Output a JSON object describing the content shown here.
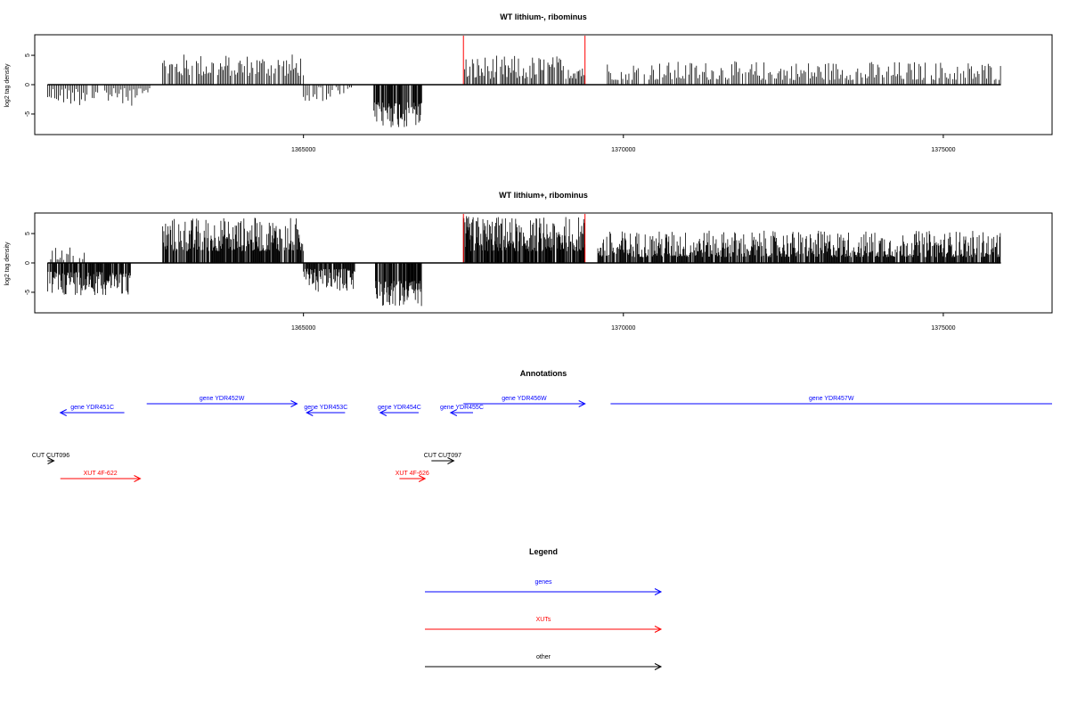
{
  "chart_data": [
    {
      "type": "bar",
      "title": "WT lithium-, ribominus",
      "ylabel": "log2 tag density",
      "xlabel": "",
      "xlim": [
        1360800,
        1376700
      ],
      "ylim": [
        -8.5,
        8.5
      ],
      "x_ticks": [
        1365000,
        1370000,
        1375000
      ],
      "y_ticks": [
        -5,
        0,
        5
      ],
      "grid": false,
      "segments": [
        {
          "start": 1361000,
          "end": 1362600,
          "sign": -1,
          "min": 0.6,
          "max": 3.6,
          "step": 28
        },
        {
          "start": 1362800,
          "end": 1365000,
          "sign": 1,
          "min": 1.5,
          "max": 5.3,
          "step": 22
        },
        {
          "start": 1365000,
          "end": 1365800,
          "sign": -1,
          "min": 0.4,
          "max": 2.8,
          "step": 30
        },
        {
          "start": 1366100,
          "end": 1366850,
          "sign": -1,
          "min": 3.0,
          "max": 7.5,
          "step": 9
        },
        {
          "start": 1367500,
          "end": 1369400,
          "sign": 1,
          "min": 1.0,
          "max": 5.0,
          "step": 20
        },
        {
          "start": 1369750,
          "end": 1375900,
          "sign": 1,
          "min": 0.8,
          "max": 4.0,
          "step": 24
        }
      ],
      "highlights": [
        {
          "x": 1367500,
          "y": 8.5
        },
        {
          "x": 1369400,
          "y": 8.5
        }
      ],
      "highlight_color": "#ff0000"
    },
    {
      "type": "bar",
      "title": "WT lithium+, ribominus",
      "ylabel": "log2 tag density",
      "xlabel": "",
      "xlim": [
        1360800,
        1376700
      ],
      "ylim": [
        -8.5,
        8.5
      ],
      "x_ticks": [
        1365000,
        1370000,
        1375000
      ],
      "y_ticks": [
        -5,
        0,
        5
      ],
      "grid": false,
      "segments": [
        {
          "start": 1361000,
          "end": 1362300,
          "sign": -1,
          "min": 1.5,
          "max": 5.5,
          "step": 9
        },
        {
          "start": 1361000,
          "end": 1361600,
          "sign": 1,
          "min": 0.5,
          "max": 3.0,
          "step": 25
        },
        {
          "start": 1362800,
          "end": 1365000,
          "sign": 1,
          "min": 2.0,
          "max": 7.8,
          "step": 9
        },
        {
          "start": 1365000,
          "end": 1365800,
          "sign": -1,
          "min": 1.0,
          "max": 5.0,
          "step": 10
        },
        {
          "start": 1366100,
          "end": 1366850,
          "sign": -1,
          "min": 3.0,
          "max": 7.5,
          "step": 8
        },
        {
          "start": 1367500,
          "end": 1369400,
          "sign": 1,
          "min": 2.0,
          "max": 8.0,
          "step": 8
        },
        {
          "start": 1369600,
          "end": 1375900,
          "sign": 1,
          "min": 1.0,
          "max": 5.5,
          "step": 10
        }
      ],
      "highlights": [
        {
          "x": 1367500,
          "y": 8.5
        },
        {
          "x": 1369400,
          "y": 8.5
        }
      ],
      "highlight_color": "#ff0000"
    }
  ],
  "annotations": {
    "title": "Annotations",
    "rows": [
      {
        "label": "gene YDR451C",
        "x1": 1361200,
        "x2": 1362200,
        "dir": "left",
        "row": 2,
        "color": "#0000ff"
      },
      {
        "label": "gene YDR452W",
        "x1": 1362550,
        "x2": 1364900,
        "dir": "right",
        "row": 1,
        "color": "#0000ff"
      },
      {
        "label": "gene YDR453C",
        "x1": 1365050,
        "x2": 1365650,
        "dir": "left",
        "row": 2,
        "color": "#0000ff"
      },
      {
        "label": "gene YDR454C",
        "x1": 1366200,
        "x2": 1366800,
        "dir": "left",
        "row": 2,
        "color": "#0000ff"
      },
      {
        "label": "gene YDR455C",
        "x1": 1367300,
        "x2": 1367650,
        "dir": "left",
        "row": 2,
        "color": "#0000ff"
      },
      {
        "label": "gene YDR456W",
        "x1": 1367500,
        "x2": 1369400,
        "dir": "right",
        "row": 1,
        "color": "#0000ff"
      },
      {
        "label": "gene YDR457W",
        "x1": 1369800,
        "x2": 1376700,
        "dir": "none",
        "row": 1,
        "color": "#0000ff"
      },
      {
        "label": "CUT CUT096",
        "x1": 1361000,
        "x2": 1361100,
        "dir": "right",
        "row": 3,
        "color": "#000000"
      },
      {
        "label": "CUT CUT097",
        "x1": 1367000,
        "x2": 1367350,
        "dir": "right",
        "row": 3,
        "color": "#000000"
      },
      {
        "label": "XUT 4F-622",
        "x1": 1361200,
        "x2": 1362450,
        "dir": "right",
        "row": 4,
        "color": "#ff0000"
      },
      {
        "label": "XUT 4F-626",
        "x1": 1366500,
        "x2": 1366900,
        "dir": "right",
        "row": 4,
        "color": "#ff0000"
      }
    ]
  },
  "legend": {
    "title": "Legend",
    "items": [
      {
        "label": "genes",
        "color": "#0000ff"
      },
      {
        "label": "XUTs",
        "color": "#ff0000"
      },
      {
        "label": "other",
        "color": "#000000"
      }
    ]
  }
}
